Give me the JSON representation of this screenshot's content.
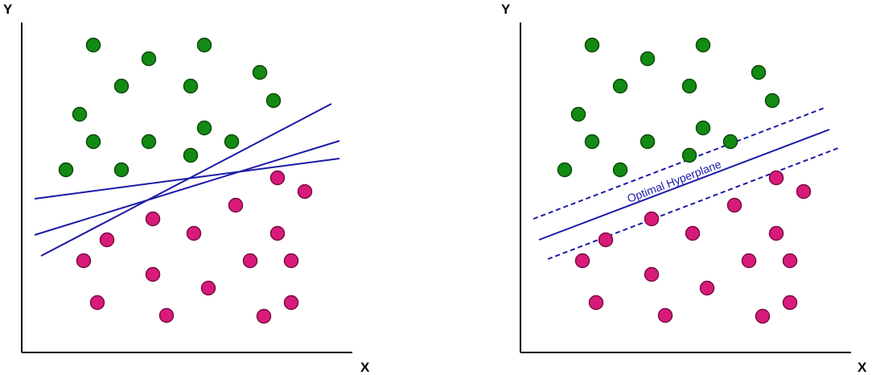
{
  "colors": {
    "class_a": "#138a13",
    "class_a_stroke": "#0b4a0b",
    "class_b": "#d81b7a",
    "class_b_stroke": "#7a0d44",
    "line": "#1a1aa8",
    "axis": "#000000"
  },
  "panels": [
    {
      "id": "left",
      "y_axis_label": "Y",
      "x_axis_label": "X",
      "lines": [],
      "hyperplane_label": ""
    },
    {
      "id": "right",
      "y_axis_label": "Y",
      "x_axis_label": "X",
      "hyperplane_label": "Optimal Hyperplane"
    }
  ]
}
